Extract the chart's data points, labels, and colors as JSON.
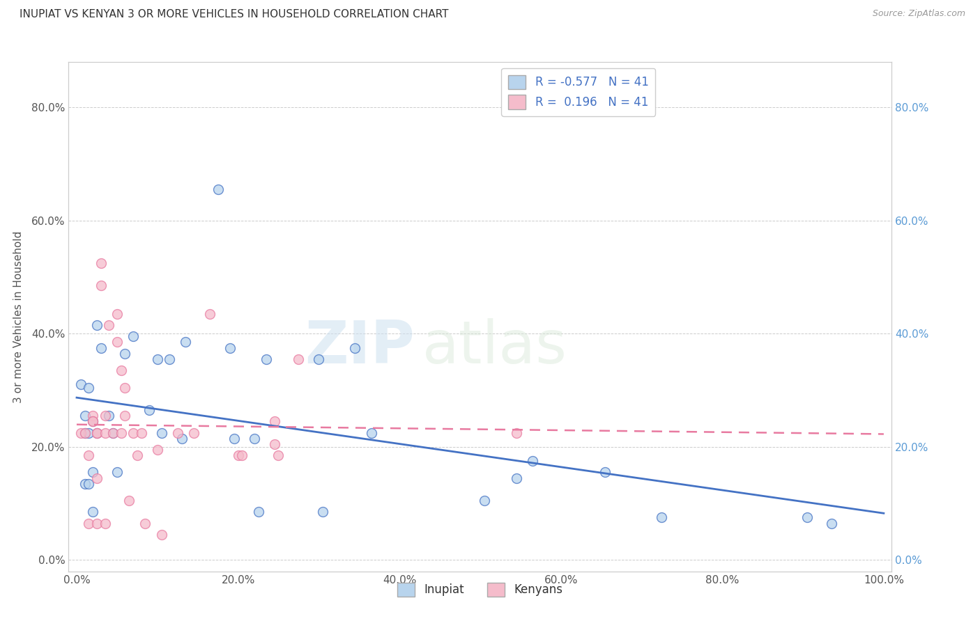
{
  "title": "INUPIAT VS KENYAN 3 OR MORE VEHICLES IN HOUSEHOLD CORRELATION CHART",
  "source": "Source: ZipAtlas.com",
  "ylabel": "3 or more Vehicles in Household",
  "xlabel": "",
  "legend_label1": "Inupiat",
  "legend_label2": "Kenyans",
  "r1": -0.577,
  "r2": 0.196,
  "n1": 41,
  "n2": 41,
  "xlim": [
    -0.01,
    1.01
  ],
  "ylim": [
    -0.02,
    0.88
  ],
  "xticks": [
    0.0,
    0.2,
    0.4,
    0.6,
    0.8,
    1.0
  ],
  "yticks": [
    0.0,
    0.2,
    0.4,
    0.6,
    0.8
  ],
  "color_inupiat": "#b8d4ed",
  "color_kenyan": "#f5bccb",
  "color_line_inupiat": "#4472C4",
  "color_line_kenyan": "#e87aa0",
  "color_right_ticks": "#5B9BD5",
  "background_color": "#ffffff",
  "watermark_zip": "ZIP",
  "watermark_atlas": "atlas",
  "inupiat_x": [
    0.005,
    0.01,
    0.015,
    0.02,
    0.025,
    0.01,
    0.015,
    0.02,
    0.01,
    0.015,
    0.02,
    0.025,
    0.03,
    0.04,
    0.045,
    0.05,
    0.06,
    0.07,
    0.09,
    0.1,
    0.105,
    0.115,
    0.13,
    0.135,
    0.175,
    0.19,
    0.195,
    0.22,
    0.225,
    0.235,
    0.3,
    0.305,
    0.345,
    0.365,
    0.505,
    0.545,
    0.565,
    0.655,
    0.725,
    0.905,
    0.935
  ],
  "inupiat_y": [
    0.31,
    0.255,
    0.305,
    0.245,
    0.225,
    0.225,
    0.225,
    0.155,
    0.135,
    0.135,
    0.085,
    0.415,
    0.375,
    0.255,
    0.225,
    0.155,
    0.365,
    0.395,
    0.265,
    0.355,
    0.225,
    0.355,
    0.215,
    0.385,
    0.655,
    0.375,
    0.215,
    0.215,
    0.085,
    0.355,
    0.355,
    0.085,
    0.375,
    0.225,
    0.105,
    0.145,
    0.175,
    0.155,
    0.075,
    0.075,
    0.065
  ],
  "kenyan_x": [
    0.005,
    0.01,
    0.015,
    0.015,
    0.02,
    0.02,
    0.02,
    0.025,
    0.025,
    0.025,
    0.025,
    0.03,
    0.03,
    0.035,
    0.035,
    0.035,
    0.04,
    0.045,
    0.05,
    0.05,
    0.055,
    0.055,
    0.06,
    0.06,
    0.065,
    0.07,
    0.075,
    0.08,
    0.085,
    0.1,
    0.105,
    0.125,
    0.145,
    0.165,
    0.2,
    0.205,
    0.245,
    0.245,
    0.25,
    0.275,
    0.545
  ],
  "kenyan_y": [
    0.225,
    0.225,
    0.185,
    0.065,
    0.255,
    0.245,
    0.245,
    0.225,
    0.225,
    0.145,
    0.065,
    0.525,
    0.485,
    0.255,
    0.225,
    0.065,
    0.415,
    0.225,
    0.435,
    0.385,
    0.335,
    0.225,
    0.305,
    0.255,
    0.105,
    0.225,
    0.185,
    0.225,
    0.065,
    0.195,
    0.045,
    0.225,
    0.225,
    0.435,
    0.185,
    0.185,
    0.245,
    0.205,
    0.185,
    0.355,
    0.225
  ]
}
